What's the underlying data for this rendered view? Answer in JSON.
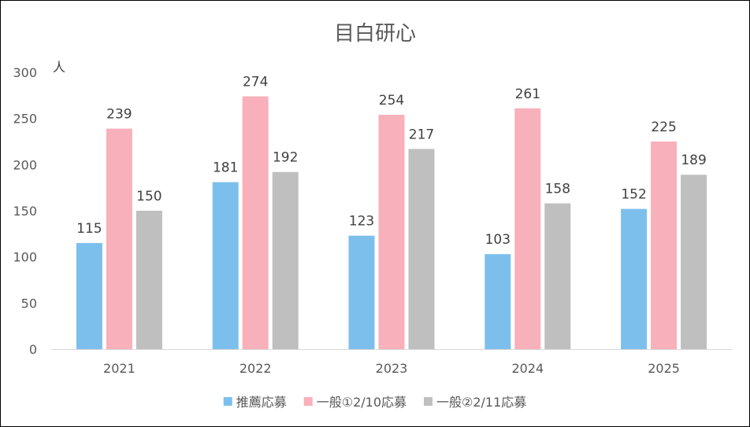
{
  "chart_data": {
    "type": "bar",
    "title": "目白研心",
    "unit_label": "人",
    "categories": [
      "2021",
      "2022",
      "2023",
      "2024",
      "2025"
    ],
    "series": [
      {
        "name": "推薦応募",
        "color": "#7dbfec",
        "values": [
          115,
          181,
          123,
          103,
          152
        ]
      },
      {
        "name": "一般①2/10応募",
        "color": "#f8b0bb",
        "values": [
          239,
          274,
          254,
          261,
          225
        ]
      },
      {
        "name": "一般②2/11応募",
        "color": "#bfbfbf",
        "values": [
          150,
          192,
          217,
          158,
          189
        ]
      }
    ],
    "ylim": [
      0,
      300
    ],
    "yticks": [
      0,
      50,
      100,
      150,
      200,
      250,
      300
    ],
    "grid": false,
    "legend_position": "bottom",
    "data_labels": true
  }
}
